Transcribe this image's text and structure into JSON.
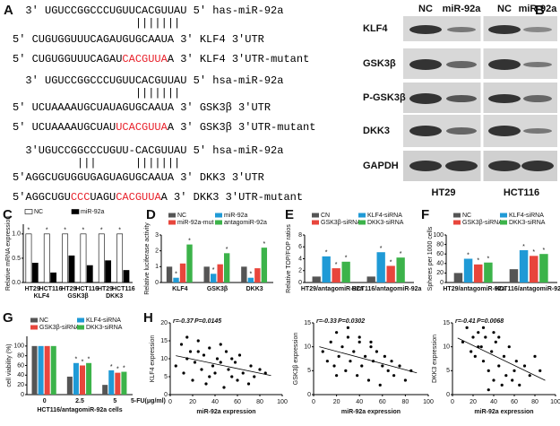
{
  "panel_labels": [
    "A",
    "B",
    "C",
    "D",
    "E",
    "F",
    "G",
    "H"
  ],
  "panel_a": {
    "lines": [
      [
        {
          "text": "  3' UGUCCGGCCCUGUUCACGUUAU 5' has-miR-92a",
          "color": "#000"
        }
      ],
      [
        {
          "text": "                   |||||||",
          "color": "#000"
        }
      ],
      [
        {
          "text": "5' CUGUGGUUUCAGAUGUGCAAUA 3' KLF4 3'UTR",
          "color": "#000"
        }
      ],
      [
        {
          "text": "5' CUGUGGUUUCAGAU",
          "color": "#000"
        },
        {
          "text": "CACGUUA",
          "color": "#e8202a"
        },
        {
          "text": "A 3' KLF4 3'UTR-mutant",
          "color": "#000"
        }
      ],
      [
        {
          "text": "  3' UGUCCGGCCCUGUUCACGUUAU 5' hsa-miR-92a",
          "color": "#000"
        }
      ],
      [
        {
          "text": "                   |||||||",
          "color": "#000"
        }
      ],
      [
        {
          "text": "5' UCUAAAAUGCUAUAGUGCAAUA 3' GSK3β 3'UTR",
          "color": "#000"
        }
      ],
      [
        {
          "text": "5' UCUAAAAUGCUAU",
          "color": "#000"
        },
        {
          "text": "UCACGUUA",
          "color": "#e8202a"
        },
        {
          "text": "A 3' GSK3β 3'UTR-mutant",
          "color": "#000"
        }
      ],
      [
        {
          "text": "  3'UGUCCGGCCCUGUU-CACGUUAU 5' hsa-miR-92a",
          "color": "#000"
        }
      ],
      [
        {
          "text": "          |||      |||||||",
          "color": "#000"
        }
      ],
      [
        {
          "text": "5'AGGCUGUGGUGAGUAGUGCAAUA 3' DKK3 3'UTR",
          "color": "#000"
        }
      ],
      [
        {
          "text": "5'AGGCUGU",
          "color": "#000"
        },
        {
          "text": "CCC",
          "color": "#e8202a"
        },
        {
          "text": "UAGU",
          "color": "#000"
        },
        {
          "text": "CACGUUA",
          "color": "#e8202a"
        },
        {
          "text": "A 3' DKK3 3'UTR-mutant",
          "color": "#000"
        }
      ]
    ]
  },
  "panel_b": {
    "columns": [
      "NC",
      "miR-92a",
      "NC",
      "miR-92a"
    ],
    "proteins": [
      "KLF4",
      "GSK3β",
      "P-GSK3β",
      "DKK3",
      "GAPDH"
    ],
    "cell_lines": [
      "HT29",
      "HCT116"
    ]
  },
  "chart_data": [
    {
      "type": "bar",
      "ylabel": "Relative mRNA expression",
      "categories": [
        "HT29",
        "HCT116",
        "HT29",
        "HCT116",
        "HT29",
        "HCT116"
      ],
      "groups": [
        "KLF4",
        "GSK3β",
        "DKK3"
      ],
      "edgecolor": "#000",
      "star": "*",
      "series": [
        {
          "name": "NC",
          "color": "#ffffff",
          "values": [
            1,
            1,
            1,
            1,
            1,
            1
          ],
          "starred": [
            true,
            true,
            true,
            true,
            true,
            true
          ]
        },
        {
          "name": "miR-92a",
          "color": "#000000",
          "values": [
            0.4,
            0.2,
            0.55,
            0.35,
            0.45,
            0.25
          ],
          "starred": [
            false,
            false,
            false,
            false,
            false,
            false
          ]
        }
      ],
      "ylim": [
        0,
        1.2
      ],
      "yticks": [
        {
          "value": 0,
          "label": "0.0"
        },
        {
          "value": 0.5,
          "label": "0.5"
        },
        {
          "value": 1,
          "label": "1.0"
        }
      ]
    },
    {
      "type": "bar",
      "ylabel": "Relative luciferase activity",
      "categories": [
        "KLF4",
        "GSK3β",
        "DKK3"
      ],
      "star": "*",
      "series": [
        {
          "name": "NC",
          "color": "#555555",
          "values": [
            1,
            1,
            1
          ],
          "starred": [
            false,
            false,
            false
          ]
        },
        {
          "name": "miR-92a",
          "color": "#1f9ad6",
          "values": [
            0.3,
            0.55,
            0.3
          ],
          "starred": [
            true,
            true,
            true
          ]
        },
        {
          "name": "miR-92a-mut",
          "color": "#e8463c",
          "values": [
            1.2,
            1.15,
            0.9
          ],
          "starred": [
            false,
            false,
            false
          ]
        },
        {
          "name": "antagomiR-92a",
          "color": "#3cb34a",
          "values": [
            2.4,
            1.85,
            2.2
          ],
          "starred": [
            true,
            true,
            true
          ]
        }
      ],
      "ylim": [
        0,
        3
      ],
      "yticks": [
        0,
        1,
        2,
        3
      ]
    },
    {
      "type": "bar",
      "ylabel": "Relative TOP/FOP ratios",
      "categories": [
        "HT29/antagomiR-92a",
        "HCT116/antagomiR-92a"
      ],
      "star": "*",
      "series": [
        {
          "name": "CN",
          "color": "#555555",
          "values": [
            1,
            1
          ],
          "starred": [
            false,
            false
          ]
        },
        {
          "name": "KLF4-siRNA",
          "color": "#1f9ad6",
          "values": [
            4.4,
            5.1
          ],
          "starred": [
            true,
            true
          ]
        },
        {
          "name": "GSK3β-siRNA",
          "color": "#e8463c",
          "values": [
            2.4,
            2.8
          ],
          "starred": [
            true,
            true
          ]
        },
        {
          "name": "DKK3-siRNA",
          "color": "#3cb34a",
          "values": [
            3.5,
            4.2
          ],
          "starred": [
            true,
            true
          ]
        }
      ],
      "ylim": [
        0,
        8
      ],
      "yticks": [
        0,
        2,
        4,
        6,
        8
      ]
    },
    {
      "type": "bar",
      "ylabel": "Spheres per 1000 cells",
      "categories": [
        "HT29/antagomiR-92a",
        "HCT116/antagomiR-92a"
      ],
      "star": "*",
      "series": [
        {
          "name": "NC",
          "color": "#555555",
          "values": [
            20,
            28
          ],
          "starred": [
            false,
            false
          ]
        },
        {
          "name": "KLF4-siRNA",
          "color": "#1f9ad6",
          "values": [
            50,
            68
          ],
          "starred": [
            true,
            true
          ]
        },
        {
          "name": "GSK3β-siRNA",
          "color": "#e8463c",
          "values": [
            38,
            56
          ],
          "starred": [
            true,
            true
          ]
        },
        {
          "name": "DKK3-siRNA",
          "color": "#3cb34a",
          "values": [
            42,
            60
          ],
          "starred": [
            true,
            true
          ]
        }
      ],
      "ylim": [
        0,
        100
      ],
      "yticks": [
        0,
        20,
        40,
        60,
        80,
        100
      ]
    },
    {
      "type": "bar",
      "ylabel": "cell viability (%)",
      "xlabel": "HCT116/antagomiR-92a cells",
      "x_unit": "5-FU(μg/ml)",
      "categories": [
        "0",
        "2.5",
        "5"
      ],
      "star": "*",
      "series": [
        {
          "name": "NC",
          "color": "#555555",
          "values": [
            100,
            37,
            20
          ],
          "starred": [
            false,
            false,
            false
          ]
        },
        {
          "name": "KLF4-siRNA",
          "color": "#1f9ad6",
          "values": [
            100,
            65,
            50
          ],
          "starred": [
            false,
            true,
            true
          ]
        },
        {
          "name": "GSK3β-siRNA",
          "color": "#e8463c",
          "values": [
            100,
            60,
            45
          ],
          "starred": [
            false,
            true,
            true
          ]
        },
        {
          "name": "DKK3-siRNA",
          "color": "#3cb34a",
          "values": [
            100,
            65,
            47
          ],
          "starred": [
            false,
            true,
            true
          ]
        }
      ],
      "ylim": [
        0,
        120
      ],
      "yticks": [
        0,
        20,
        40,
        60,
        80,
        100
      ]
    },
    {
      "type": "scatter",
      "xlabel": "miR-92a expression",
      "ylabel": "KLF4 expression",
      "annotations": [
        "r=-0.37",
        "P=0.0145"
      ],
      "color": "#000000",
      "x": [
        5,
        10,
        12,
        15,
        18,
        20,
        22,
        25,
        28,
        30,
        32,
        35,
        38,
        40,
        42,
        45,
        48,
        50,
        52,
        55,
        58,
        60,
        62,
        65,
        70,
        72,
        75,
        80,
        85,
        35,
        25,
        45,
        55,
        15
      ],
      "y": [
        8,
        14,
        6,
        10,
        12,
        4,
        9,
        15,
        7,
        11,
        3,
        13,
        8,
        6,
        10,
        9,
        2,
        12,
        7,
        5,
        9,
        4,
        11,
        6,
        3,
        8,
        5,
        7,
        6,
        5,
        12,
        14,
        10,
        16
      ],
      "xlim": [
        0,
        100
      ],
      "xticks": [
        0,
        20,
        40,
        60,
        80,
        100
      ],
      "ylim": [
        0,
        20
      ],
      "yticks": [
        0,
        5,
        10,
        15,
        20
      ]
    },
    {
      "type": "scatter",
      "xlabel": "miR-92a expression",
      "ylabel": "GSK3β expression",
      "annotations": [
        "r=-0.33",
        "P=0.0302"
      ],
      "color": "#000000",
      "x": [
        8,
        12,
        15,
        18,
        20,
        22,
        25,
        28,
        30,
        32,
        35,
        38,
        40,
        42,
        45,
        48,
        50,
        52,
        55,
        58,
        60,
        62,
        65,
        68,
        70,
        75,
        80,
        85,
        30,
        40,
        50,
        20
      ],
      "y": [
        9,
        7,
        11,
        6,
        13,
        8,
        10,
        5,
        12,
        7,
        9,
        4,
        11,
        6,
        8,
        3,
        10,
        7,
        9,
        2,
        6,
        8,
        5,
        7,
        4,
        6,
        3,
        5,
        14,
        12,
        11,
        4
      ],
      "xlim": [
        0,
        100
      ],
      "xticks": [
        0,
        20,
        40,
        60,
        80,
        100
      ],
      "ylim": [
        0,
        15
      ],
      "yticks": [
        0,
        5,
        10,
        15
      ]
    },
    {
      "type": "scatter",
      "xlabel": "miR-92a expression",
      "ylabel": "DKK3 expression",
      "annotations": [
        "r=-0.41",
        "P=0.0068"
      ],
      "color": "#000000",
      "x": [
        10,
        14,
        18,
        20,
        22,
        25,
        28,
        30,
        32,
        35,
        38,
        40,
        42,
        45,
        48,
        50,
        52,
        55,
        58,
        60,
        62,
        65,
        70,
        75,
        80,
        85,
        30,
        40,
        35,
        25,
        45
      ],
      "y": [
        11,
        14,
        9,
        12,
        8,
        13,
        10,
        7,
        12,
        5,
        9,
        3,
        11,
        6,
        2,
        8,
        4,
        10,
        3,
        5,
        7,
        2,
        6,
        4,
        8,
        5,
        14,
        13,
        1,
        10,
        12
      ],
      "xlim": [
        0,
        100
      ],
      "xticks": [
        0,
        20,
        40,
        60,
        80,
        100
      ],
      "ylim": [
        0,
        15
      ],
      "yticks": [
        0,
        5,
        10,
        15
      ]
    }
  ]
}
